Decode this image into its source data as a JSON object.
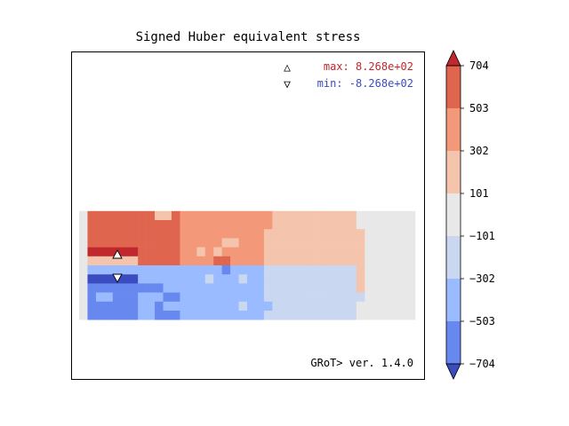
{
  "chart_data": {
    "type": "heatmap",
    "title": "Signed Huber equivalent stress",
    "annotations": {
      "max_symbol": "△",
      "max_label": "max:  8.268e+02",
      "min_symbol": "▽",
      "min_label": "min: -8.268e+02",
      "footer": "GRoT> ver. 1.4.0"
    },
    "colorbar": {
      "tick_labels": [
        "704",
        "503",
        "302",
        "101",
        "−101",
        "−302",
        "−503",
        "−704"
      ],
      "levels": [
        -704,
        -503,
        -302,
        -101,
        101,
        302,
        503,
        704
      ],
      "colors": [
        "#6788ee",
        "#9abbff",
        "#c9d7f0",
        "#e8e8e8",
        "#f5c4ac",
        "#f4987a",
        "#e0654f"
      ],
      "over_color": "#c0282d",
      "under_color": "#3b4cc0",
      "extend": "both"
    },
    "grid": {
      "columns": 35,
      "rows_top": 6,
      "rows_bottom": 6,
      "upper_half_sign": "positive",
      "lower_half_sign": "negative"
    },
    "markers": {
      "max_value": 826.8,
      "min_value": -826.8
    },
    "colors": {
      "max_text": "#c0282d",
      "min_text": "#3b4cc0",
      "background_cell": "#e8e8e8"
    }
  }
}
